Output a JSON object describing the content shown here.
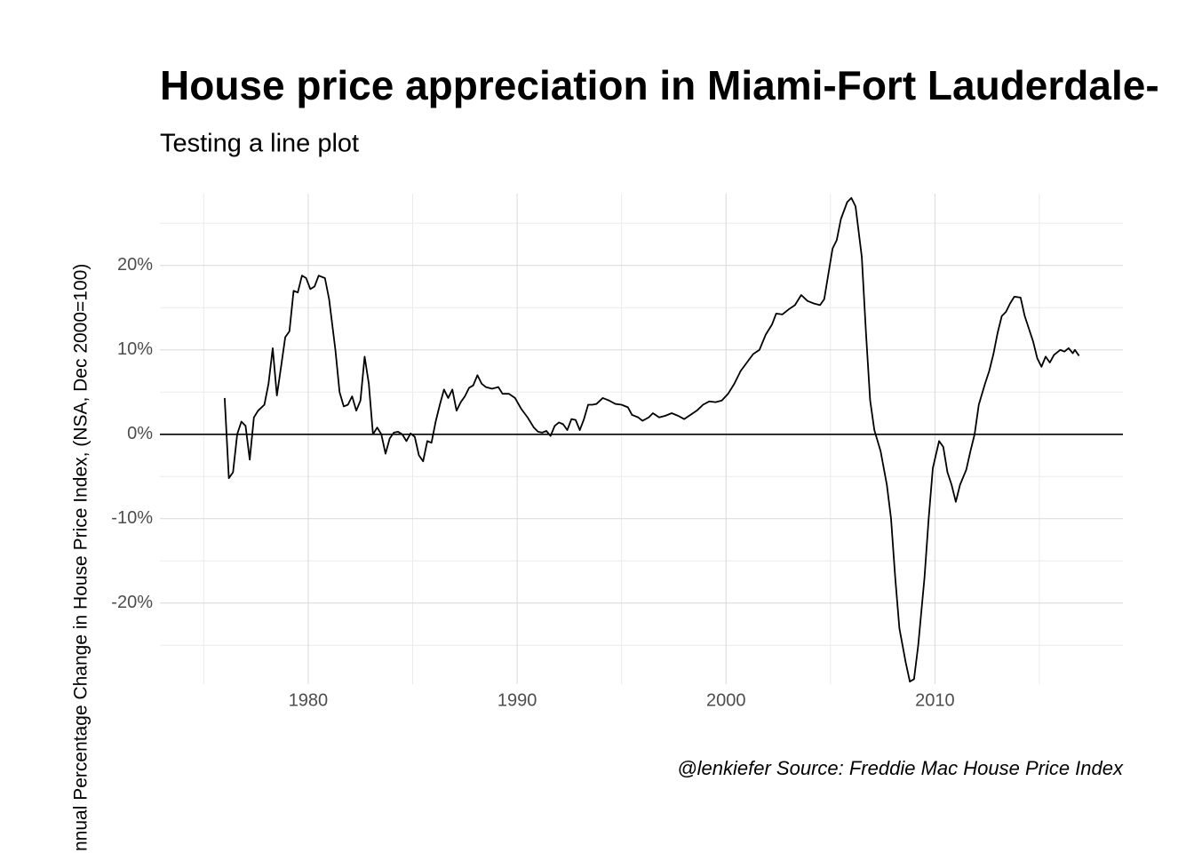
{
  "chart_data": {
    "type": "line",
    "title": "House price appreciation in Miami-Fort Lauderdale-",
    "subtitle": "Testing a line plot",
    "ylabel": "nnual Percentage Change in House Price Index, (NSA, Dec 2000=100)",
    "caption": "@lenkiefer Source: Freddie Mac House Price Index",
    "color": "#000000",
    "grid": true,
    "hline": 0,
    "xlim": [
      1972.9,
      2019.0
    ],
    "ylim": [
      -29.6,
      28.5
    ],
    "xticks": [
      1980,
      1990,
      2000,
      2010
    ],
    "yticks": [
      {
        "value": -20,
        "label": "-20%"
      },
      {
        "value": -10,
        "label": "-10%"
      },
      {
        "value": 0,
        "label": "0%"
      },
      {
        "value": 10,
        "label": "10%"
      },
      {
        "value": 20,
        "label": "20%"
      }
    ],
    "x": [
      1976.0,
      1976.2,
      1976.4,
      1976.6,
      1976.8,
      1977.0,
      1977.2,
      1977.4,
      1977.6,
      1977.9,
      1978.1,
      1978.3,
      1978.5,
      1978.7,
      1978.9,
      1979.1,
      1979.3,
      1979.5,
      1979.7,
      1979.9,
      1980.1,
      1980.3,
      1980.5,
      1980.8,
      1981.0,
      1981.3,
      1981.5,
      1981.7,
      1981.9,
      1982.1,
      1982.3,
      1982.5,
      1982.7,
      1982.9,
      1983.1,
      1983.3,
      1983.5,
      1983.7,
      1983.9,
      1984.1,
      1984.3,
      1984.5,
      1984.7,
      1984.9,
      1985.1,
      1985.3,
      1985.5,
      1985.7,
      1985.9,
      1986.1,
      1986.3,
      1986.5,
      1986.7,
      1986.9,
      1987.1,
      1987.3,
      1987.5,
      1987.7,
      1987.9,
      1988.1,
      1988.3,
      1988.5,
      1988.8,
      1989.1,
      1989.3,
      1989.6,
      1989.9,
      1990.2,
      1990.5,
      1990.8,
      1991.0,
      1991.2,
      1991.4,
      1991.6,
      1991.8,
      1992.0,
      1992.2,
      1992.4,
      1992.6,
      1992.8,
      1993.0,
      1993.2,
      1993.4,
      1993.6,
      1993.8,
      1994.1,
      1994.4,
      1994.7,
      1995.0,
      1995.3,
      1995.5,
      1995.8,
      1996.0,
      1996.3,
      1996.5,
      1996.8,
      1997.1,
      1997.4,
      1997.7,
      1998.0,
      1998.3,
      1998.6,
      1998.9,
      1999.2,
      1999.5,
      1999.8,
      2000.1,
      2000.4,
      2000.7,
      2001.0,
      2001.3,
      2001.6,
      2001.9,
      2002.2,
      2002.4,
      2002.7,
      2003.0,
      2003.3,
      2003.6,
      2003.9,
      2004.2,
      2004.5,
      2004.7,
      2004.9,
      2005.1,
      2005.3,
      2005.5,
      2005.8,
      2006.0,
      2006.2,
      2006.5,
      2006.7,
      2006.9,
      2007.1,
      2007.4,
      2007.7,
      2007.9,
      2008.1,
      2008.3,
      2008.6,
      2008.8,
      2009.0,
      2009.2,
      2009.5,
      2009.7,
      2009.9,
      2010.2,
      2010.4,
      2010.6,
      2010.8,
      2011.0,
      2011.2,
      2011.5,
      2011.7,
      2011.9,
      2012.1,
      2012.4,
      2012.6,
      2012.8,
      2013.0,
      2013.2,
      2013.4,
      2013.6,
      2013.8,
      2014.1,
      2014.3,
      2014.5,
      2014.7,
      2014.9,
      2015.1,
      2015.3,
      2015.5,
      2015.7,
      2016.0,
      2016.2,
      2016.4,
      2016.6,
      2016.7,
      2016.9
    ],
    "values": [
      4.3,
      -5.2,
      -4.5,
      0,
      1.5,
      1.0,
      -3.0,
      2.0,
      2.8,
      3.5,
      6,
      10.2,
      4.6,
      8,
      11.5,
      12.2,
      17,
      16.8,
      18.8,
      18.5,
      17.2,
      17.5,
      18.8,
      18.5,
      16,
      10,
      5,
      3.3,
      3.5,
      4.5,
      2.8,
      4.0,
      9.2,
      6,
      0,
      0.8,
      0,
      -2.3,
      -0.5,
      0.2,
      0.3,
      0,
      -0.8,
      0.1,
      -0.3,
      -2.5,
      -3.2,
      -0.8,
      -1.0,
      1.5,
      3.5,
      5.3,
      4.3,
      5.3,
      2.8,
      3.8,
      4.5,
      5.5,
      5.8,
      7.0,
      6,
      5.6,
      5.4,
      5.6,
      4.8,
      4.8,
      4.3,
      3,
      2.0,
      0.8,
      0.3,
      0.2,
      0.4,
      -0.2,
      1.0,
      1.4,
      1.2,
      0.5,
      1.8,
      1.7,
      0.5,
      1.8,
      3.5,
      3.5,
      3.6,
      4.3,
      4.0,
      3.6,
      3.5,
      3.2,
      2.3,
      2.0,
      1.6,
      2.0,
      2.5,
      2.0,
      2.2,
      2.5,
      2.2,
      1.8,
      2.3,
      2.8,
      3.5,
      3.9,
      3.8,
      4.0,
      4.8,
      6,
      7.5,
      8.5,
      9.5,
      10,
      11.8,
      13,
      14.3,
      14.2,
      14.8,
      15.3,
      16.5,
      15.8,
      15.5,
      15.3,
      16,
      19,
      22,
      23,
      25.5,
      27.5,
      28,
      27,
      21,
      12,
      4,
      0.5,
      -2,
      -6,
      -10,
      -17,
      -23,
      -27,
      -29.3,
      -29,
      -25,
      -17,
      -10,
      -4,
      -0.8,
      -1.5,
      -4.5,
      -6,
      -8,
      -6,
      -4.2,
      -2,
      0,
      3.5,
      6,
      7.5,
      9.5,
      12,
      14,
      14.5,
      15.5,
      16.3,
      16.2,
      14,
      12.5,
      11,
      9,
      8,
      9.2,
      8.5,
      9.4,
      10,
      9.8,
      10.2,
      9.6,
      10,
      9.3
    ]
  }
}
